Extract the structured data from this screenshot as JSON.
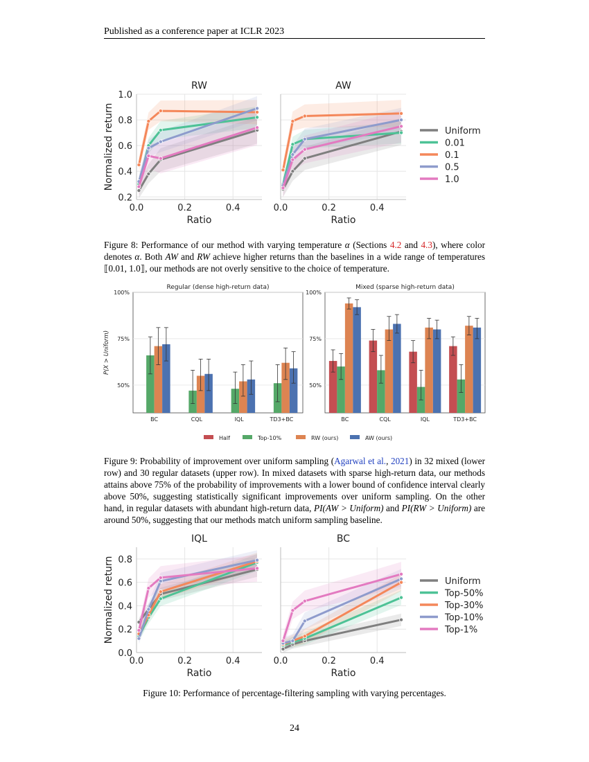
{
  "header": "Published as a conference paper at ICLR 2023",
  "page_number": "24",
  "fig8": {
    "caption_parts": {
      "a": "Figure 8: Performance of our method with varying temperature ",
      "alpha": "α",
      "b": " (Sections ",
      "ref1": "4.2",
      "c": " and ",
      "ref2": "4.3",
      "d": "), where color denotes ",
      "alpha2": "α",
      "e": ". Both ",
      "aw": "AW",
      "f": " and ",
      "rw": "RW",
      "g": " achieve higher returns than the baselines in a wide range of temperatures ",
      "range": "⟦0.01, 1.0⟧",
      "h": ", our methods are not overly sensitive to the choice of temperature."
    },
    "legend": [
      {
        "name": "Uniform",
        "color": "#7f7f7f"
      },
      {
        "name": "0.01",
        "color": "#4dc296"
      },
      {
        "name": "0.1",
        "color": "#f4875a"
      },
      {
        "name": "0.5",
        "color": "#8e9bcc"
      },
      {
        "name": "1.0",
        "color": "#e37ac0"
      }
    ]
  },
  "fig9": {
    "caption_parts": {
      "a": "Figure 9: Probability of improvement over uniform sampling (",
      "cite": "Agarwal et al.",
      "comma": ", ",
      "year": "2021",
      "b": ") in 32 mixed (lower row) and 30 regular datasets (upper row). In mixed datasets with sparse high-return data, our methods attains above 75% of the probability of improvements with a lower bound of confidence interval clearly above 50%, suggesting statistically significant improvements over uniform sampling. On the other hand, in regular datasets with abundant high-return data, ",
      "pi1": "PI(AW > Uniform)",
      "c": " and ",
      "pi2": "PI(RW > Uniform)",
      "d": " are around 50%, suggesting that our methods match uniform sampling baseline."
    },
    "legend": [
      {
        "name": "Half",
        "color": "#c44e52"
      },
      {
        "name": "Top-10%",
        "color": "#55a868"
      },
      {
        "name": "RW (ours)",
        "color": "#dd8452"
      },
      {
        "name": "AW (ours)",
        "color": "#4c72b0"
      }
    ]
  },
  "fig10": {
    "caption": "Figure 10: Performance of percentage-filtering sampling with varying percentages.",
    "legend": [
      {
        "name": "Uniform",
        "color": "#7f7f7f"
      },
      {
        "name": "Top-50%",
        "color": "#4dc296"
      },
      {
        "name": "Top-30%",
        "color": "#f4875a"
      },
      {
        "name": "Top-10%",
        "color": "#8e9bcc"
      },
      {
        "name": "Top-1%",
        "color": "#e37ac0"
      }
    ]
  },
  "chart_data": [
    {
      "type": "line",
      "title": "RW",
      "xlabel": "Ratio",
      "ylabel": "Normalized return",
      "xlim": [
        0,
        0.52
      ],
      "ylim": [
        0.18,
        1.0
      ],
      "xticks": [
        "0.0",
        "0.2",
        "0.4"
      ],
      "yticks": [
        "0.2",
        "0.4",
        "0.6",
        "0.8",
        "1.0"
      ],
      "x": [
        0.01,
        0.05,
        0.1,
        0.5
      ],
      "series": [
        {
          "name": "Uniform",
          "values": [
            0.25,
            0.38,
            0.49,
            0.72
          ]
        },
        {
          "name": "0.01",
          "values": [
            0.3,
            0.6,
            0.72,
            0.82
          ]
        },
        {
          "name": "0.1",
          "values": [
            0.45,
            0.79,
            0.87,
            0.86
          ]
        },
        {
          "name": "0.5",
          "values": [
            0.32,
            0.58,
            0.63,
            0.89
          ]
        },
        {
          "name": "1.0",
          "values": [
            0.28,
            0.52,
            0.5,
            0.74
          ]
        }
      ]
    },
    {
      "type": "line",
      "title": "AW",
      "xlabel": "Ratio",
      "ylabel": "",
      "xlim": [
        0,
        0.52
      ],
      "ylim": [
        0.18,
        1.0
      ],
      "xticks": [
        "0.0",
        "0.2",
        "0.4"
      ],
      "yticks": [],
      "x": [
        0.01,
        0.05,
        0.1,
        0.5
      ],
      "series": [
        {
          "name": "Uniform",
          "values": [
            0.26,
            0.4,
            0.5,
            0.71
          ]
        },
        {
          "name": "0.01",
          "values": [
            0.3,
            0.61,
            0.65,
            0.7
          ]
        },
        {
          "name": "0.1",
          "values": [
            0.41,
            0.79,
            0.83,
            0.85
          ]
        },
        {
          "name": "0.5",
          "values": [
            0.29,
            0.53,
            0.65,
            0.8
          ]
        },
        {
          "name": "1.0",
          "values": [
            0.27,
            0.49,
            0.57,
            0.75
          ]
        }
      ]
    },
    {
      "type": "bar",
      "title": "Regular (dense high-return data)",
      "ylabel": "P(X > Uniform)",
      "categories": [
        "BC",
        "CQL",
        "IQL",
        "TD3+BC"
      ],
      "ylim": [
        0.35,
        1.0
      ],
      "yticks": [
        "50%",
        "75%",
        "100%"
      ],
      "series": [
        {
          "name": "Half",
          "values": [
            null,
            null,
            null,
            null
          ]
        },
        {
          "name": "Top-10%",
          "values": [
            0.66,
            0.47,
            0.48,
            0.51
          ],
          "err": [
            [
              0.56,
              0.76
            ],
            [
              0.4,
              0.58
            ],
            [
              0.4,
              0.57
            ],
            [
              0.41,
              0.61
            ]
          ]
        },
        {
          "name": "RW (ours)",
          "values": [
            0.71,
            0.55,
            0.52,
            0.62
          ],
          "err": [
            [
              0.61,
              0.81
            ],
            [
              0.47,
              0.64
            ],
            [
              0.44,
              0.61
            ],
            [
              0.53,
              0.7
            ]
          ]
        },
        {
          "name": "AW (ours)",
          "values": [
            0.72,
            0.56,
            0.53,
            0.59
          ],
          "err": [
            [
              0.63,
              0.81
            ],
            [
              0.47,
              0.64
            ],
            [
              0.45,
              0.63
            ],
            [
              0.51,
              0.68
            ]
          ]
        }
      ]
    },
    {
      "type": "bar",
      "title": "Mixed (sparse high-return data)",
      "ylabel": "",
      "categories": [
        "BC",
        "CQL",
        "IQL",
        "TD3+BC"
      ],
      "ylim": [
        0.35,
        1.0
      ],
      "yticks": [
        "50%",
        "75%",
        "100%"
      ],
      "series": [
        {
          "name": "Half",
          "values": [
            0.63,
            0.74,
            0.68,
            0.71
          ],
          "err": [
            [
              0.57,
              0.69
            ],
            [
              0.68,
              0.8
            ],
            [
              0.62,
              0.74
            ],
            [
              0.66,
              0.76
            ]
          ]
        },
        {
          "name": "Top-10%",
          "values": [
            0.6,
            0.58,
            0.49,
            0.53
          ],
          "err": [
            [
              0.53,
              0.67
            ],
            [
              0.51,
              0.66
            ],
            [
              0.42,
              0.58
            ],
            [
              0.46,
              0.61
            ]
          ]
        },
        {
          "name": "RW (ours)",
          "values": [
            0.94,
            0.8,
            0.81,
            0.82
          ],
          "err": [
            [
              0.91,
              0.97
            ],
            [
              0.74,
              0.87
            ],
            [
              0.75,
              0.86
            ],
            [
              0.77,
              0.87
            ]
          ]
        },
        {
          "name": "AW (ours)",
          "values": [
            0.92,
            0.83,
            0.8,
            0.81
          ],
          "err": [
            [
              0.88,
              0.96
            ],
            [
              0.78,
              0.88
            ],
            [
              0.75,
              0.85
            ],
            [
              0.75,
              0.86
            ]
          ]
        }
      ]
    },
    {
      "type": "line",
      "title": "IQL",
      "xlabel": "Ratio",
      "ylabel": "Normalized return",
      "xlim": [
        0,
        0.52
      ],
      "ylim": [
        0,
        0.9
      ],
      "xticks": [
        "0.0",
        "0.2",
        "0.4"
      ],
      "yticks": [
        "0.0",
        "0.2",
        "0.4",
        "0.6",
        "0.8"
      ],
      "x": [
        0.01,
        0.05,
        0.1,
        0.5
      ],
      "series": [
        {
          "name": "Uniform",
          "values": [
            0.26,
            0.37,
            0.5,
            0.71
          ]
        },
        {
          "name": "Top-50%",
          "values": [
            0.14,
            0.3,
            0.46,
            0.77
          ]
        },
        {
          "name": "Top-30%",
          "values": [
            0.16,
            0.32,
            0.52,
            0.78
          ]
        },
        {
          "name": "Top-10%",
          "values": [
            0.12,
            0.37,
            0.61,
            0.79
          ]
        },
        {
          "name": "Top-1%",
          "values": [
            0.19,
            0.55,
            0.64,
            0.72
          ]
        }
      ]
    },
    {
      "type": "line",
      "title": "BC",
      "xlabel": "Ratio",
      "ylabel": "",
      "xlim": [
        0,
        0.52
      ],
      "ylim": [
        0,
        0.9
      ],
      "xticks": [
        "0.0",
        "0.2",
        "0.4"
      ],
      "yticks": [],
      "x": [
        0.01,
        0.05,
        0.1,
        0.5
      ],
      "series": [
        {
          "name": "Uniform",
          "values": [
            0.03,
            0.07,
            0.1,
            0.28
          ]
        },
        {
          "name": "Top-50%",
          "values": [
            0.06,
            0.09,
            0.12,
            0.47
          ]
        },
        {
          "name": "Top-30%",
          "values": [
            0.07,
            0.1,
            0.14,
            0.6
          ]
        },
        {
          "name": "Top-10%",
          "values": [
            0.08,
            0.1,
            0.27,
            0.63
          ]
        },
        {
          "name": "Top-1%",
          "values": [
            0.1,
            0.36,
            0.44,
            0.67
          ]
        }
      ]
    }
  ]
}
